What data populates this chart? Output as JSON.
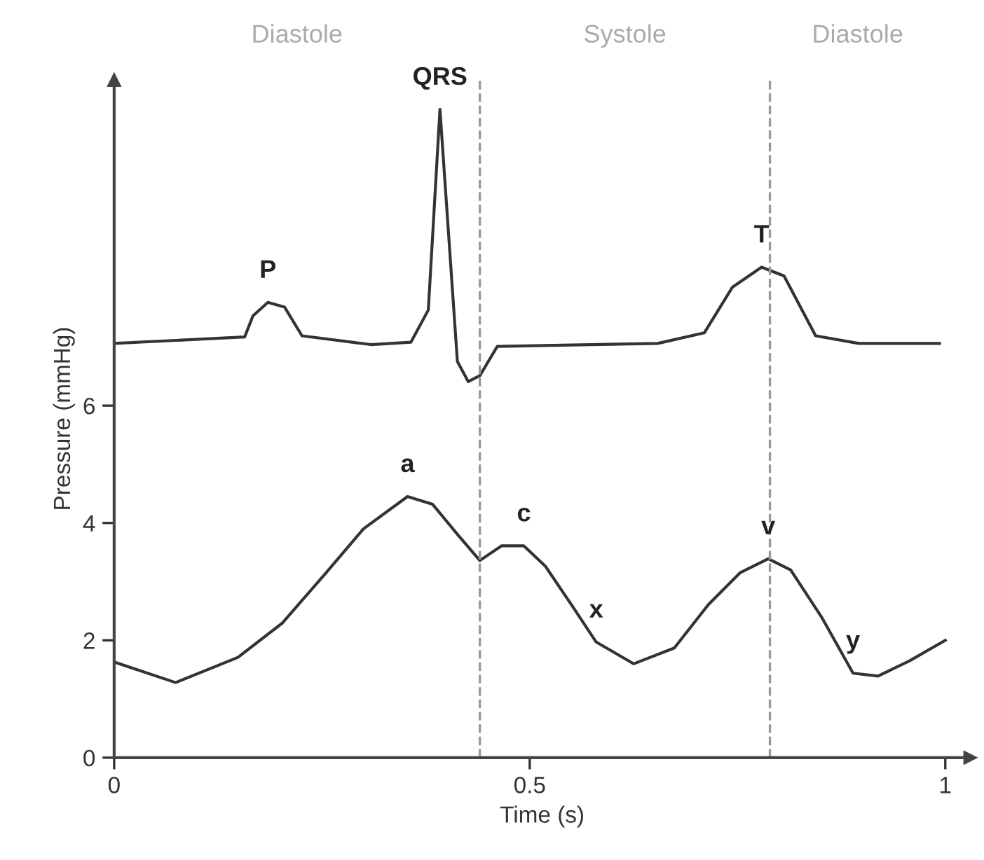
{
  "chart_data": {
    "type": "line",
    "xlabel": "Time (s)",
    "ylabel": "Pressure (mmHg)",
    "xlim": [
      0,
      1.03
    ],
    "ylim": [
      0,
      11.55
    ],
    "xticks": [
      0,
      0.5,
      1
    ],
    "yticks": [
      0,
      2,
      4,
      6
    ],
    "grid": false,
    "legend": false,
    "marker": "none",
    "line_style": "solid",
    "series": [
      {
        "color": "#333333",
        "x": [
          0,
          0.157,
          0.167,
          0.185,
          0.205,
          0.226,
          0.309,
          0.357,
          0.378,
          0.392,
          0.402,
          0.413,
          0.426,
          0.44,
          0.461,
          0.654,
          0.71,
          0.744,
          0.779,
          0.806,
          0.844,
          0.896,
          0.993
        ],
        "values": [
          7.06,
          7.17,
          7.53,
          7.76,
          7.68,
          7.19,
          7.04,
          7.08,
          7.63,
          11.05,
          9.0,
          6.75,
          6.41,
          6.51,
          7.01,
          7.06,
          7.24,
          8.02,
          8.36,
          8.21,
          7.19,
          7.06,
          7.06
        ]
      },
      {
        "color": "#333333",
        "x": [
          0,
          0.074,
          0.149,
          0.202,
          0.255,
          0.3,
          0.353,
          0.383,
          0.414,
          0.44,
          0.466,
          0.493,
          0.519,
          0.55,
          0.58,
          0.625,
          0.674,
          0.715,
          0.753,
          0.787,
          0.814,
          0.851,
          0.889,
          0.919,
          0.957,
          1.0
        ],
        "values": [
          1.63,
          1.28,
          1.71,
          2.29,
          3.15,
          3.9,
          4.45,
          4.32,
          3.79,
          3.36,
          3.61,
          3.61,
          3.26,
          2.61,
          1.97,
          1.6,
          1.87,
          2.61,
          3.15,
          3.39,
          3.2,
          2.4,
          1.44,
          1.39,
          1.65,
          2.0
        ]
      }
    ],
    "ref_lines": [
      {
        "axis": "x",
        "value": 0.44,
        "color": "#999999",
        "line_style": "dashed"
      },
      {
        "axis": "x",
        "value": 0.789,
        "color": "#999999",
        "line_style": "dashed"
      }
    ],
    "annotations": [
      "Diastole",
      "Systole",
      "Diastole",
      {
        "text": "P",
        "x": 0.185,
        "y": 7.76
      },
      {
        "text": "QRS",
        "x": 0.392,
        "y": 11.05
      },
      {
        "text": "T",
        "x": 0.779,
        "y": 8.36
      },
      {
        "text": "a",
        "x": 0.353,
        "y": 4.45
      },
      {
        "text": "c",
        "x": 0.493,
        "y": 3.61
      },
      {
        "text": "x",
        "x": 0.58,
        "y": 1.97
      },
      {
        "text": "v",
        "x": 0.787,
        "y": 3.39
      },
      {
        "text": "y",
        "x": 0.889,
        "y": 1.44
      }
    ]
  }
}
